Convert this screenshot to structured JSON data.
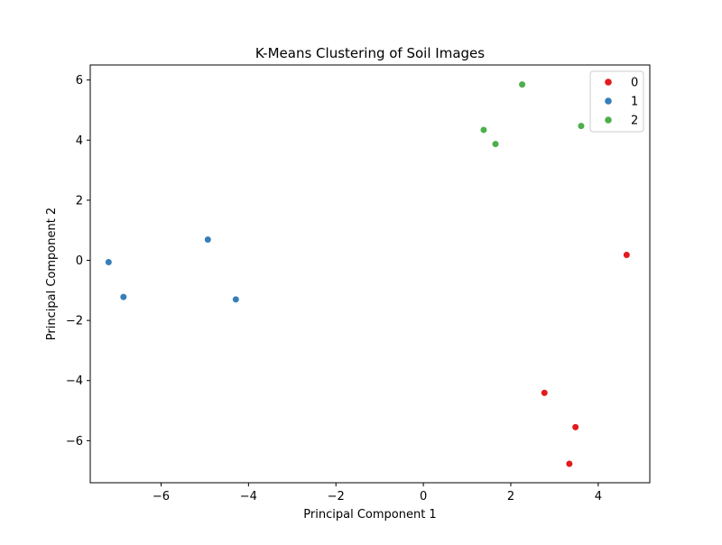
{
  "chart_data": {
    "type": "scatter",
    "title": "K-Means Clustering of Soil Images",
    "xlabel": "Principal Component 1",
    "ylabel": "Principal Component 2",
    "xlim": [
      -7.62,
      5.18
    ],
    "ylim": [
      -7.4,
      6.5
    ],
    "xticks": [
      -6,
      -4,
      -2,
      0,
      2,
      4
    ],
    "yticks": [
      -6,
      -4,
      -2,
      0,
      2,
      4,
      6
    ],
    "xtick_labels": [
      "−6",
      "−4",
      "−2",
      "0",
      "2",
      "4"
    ],
    "ytick_labels": [
      "−6",
      "−4",
      "−2",
      "0",
      "2",
      "4",
      "6"
    ],
    "grid": false,
    "legend_position": "top-right",
    "series": [
      {
        "name": "0",
        "color": "#e41a1c",
        "points": [
          [
            4.65,
            0.18
          ],
          [
            2.77,
            -4.41
          ],
          [
            3.48,
            -5.55
          ],
          [
            3.34,
            -6.77
          ]
        ]
      },
      {
        "name": "1",
        "color": "#377eb8",
        "points": [
          [
            -7.2,
            -0.06
          ],
          [
            -6.86,
            -1.22
          ],
          [
            -4.93,
            0.69
          ],
          [
            -4.29,
            -1.3
          ]
        ]
      },
      {
        "name": "2",
        "color": "#4daf4a",
        "points": [
          [
            2.26,
            5.85
          ],
          [
            1.38,
            4.34
          ],
          [
            1.65,
            3.87
          ],
          [
            3.61,
            4.47
          ]
        ]
      }
    ]
  }
}
